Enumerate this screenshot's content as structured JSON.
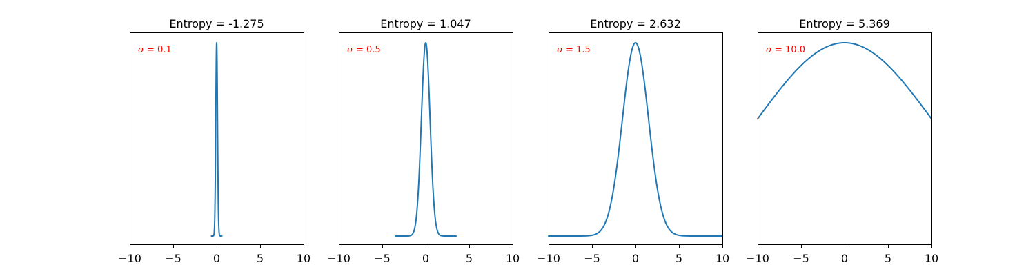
{
  "figure": {
    "background": "#ffffff",
    "line_color": "#1f77b4",
    "annotation_color": "#ff0000"
  },
  "chart_data": [
    {
      "type": "line",
      "title": "Entropy = -1.275",
      "sigma": 0.1,
      "annotation": {
        "symbol": "σ",
        "eq": " = ",
        "value": "0.1"
      },
      "x_range": [
        -0.6,
        0.6
      ],
      "xlim": [
        -10,
        10
      ],
      "xticks": [
        -10,
        -5,
        0,
        5,
        10
      ],
      "xtick_labels": [
        "−10",
        "−5",
        "0",
        "5",
        "10"
      ],
      "yticks": false,
      "grid": false
    },
    {
      "type": "line",
      "title": "Entropy = 1.047",
      "sigma": 0.5,
      "annotation": {
        "symbol": "σ",
        "eq": " = ",
        "value": "0.5"
      },
      "x_range": [
        -3.5,
        3.5
      ],
      "xlim": [
        -10,
        10
      ],
      "xticks": [
        -10,
        -5,
        0,
        5,
        10
      ],
      "xtick_labels": [
        "−10",
        "−5",
        "0",
        "5",
        "10"
      ],
      "yticks": false,
      "grid": false
    },
    {
      "type": "line",
      "title": "Entropy = 2.632",
      "sigma": 1.5,
      "annotation": {
        "symbol": "σ",
        "eq": " = ",
        "value": "1.5"
      },
      "x_range": [
        -10,
        10
      ],
      "xlim": [
        -10,
        10
      ],
      "xticks": [
        -10,
        -5,
        0,
        5,
        10
      ],
      "xtick_labels": [
        "−10",
        "−5",
        "0",
        "5",
        "10"
      ],
      "yticks": false,
      "grid": false
    },
    {
      "type": "line",
      "title": "Entropy = 5.369",
      "sigma": 10.0,
      "annotation": {
        "symbol": "σ",
        "eq": " = ",
        "value": "10.0"
      },
      "x_range": [
        -10,
        10
      ],
      "xlim": [
        -10,
        10
      ],
      "xticks": [
        -10,
        -5,
        0,
        5,
        10
      ],
      "xtick_labels": [
        "−10",
        "−5",
        "0",
        "5",
        "10"
      ],
      "yticks": false,
      "grid": false
    }
  ]
}
